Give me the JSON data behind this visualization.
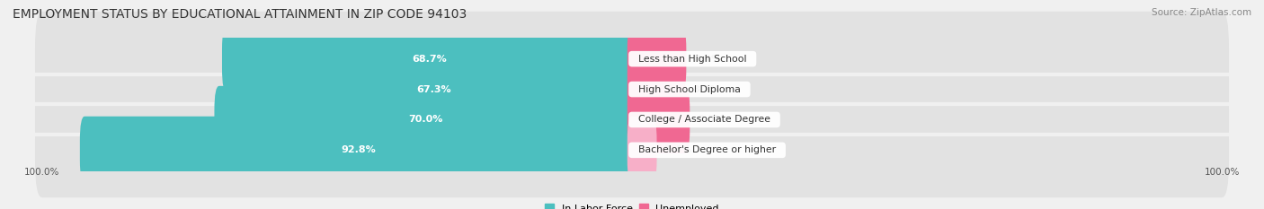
{
  "title": "EMPLOYMENT STATUS BY EDUCATIONAL ATTAINMENT IN ZIP CODE 94103",
  "source": "Source: ZipAtlas.com",
  "categories": [
    "Less than High School",
    "High School Diploma",
    "College / Associate Degree",
    "Bachelor's Degree or higher"
  ],
  "labor_force": [
    68.7,
    67.3,
    70.0,
    92.8
  ],
  "unemployed": [
    8.4,
    8.2,
    9.0,
    3.4
  ],
  "labor_force_color": "#4cbfbf",
  "unemployed_colors": [
    "#f06892",
    "#f06892",
    "#f06892",
    "#f7afc8"
  ],
  "bg_color": "#f0f0f0",
  "bar_track_color": "#e2e2e2",
  "title_fontsize": 10,
  "label_fontsize": 8,
  "source_fontsize": 7.5,
  "axis_label_left": "100.0%",
  "axis_label_right": "100.0%",
  "legend_labor": "In Labor Force",
  "legend_unemployed": "Unemployed",
  "xlim_left": -105,
  "xlim_right": 105
}
